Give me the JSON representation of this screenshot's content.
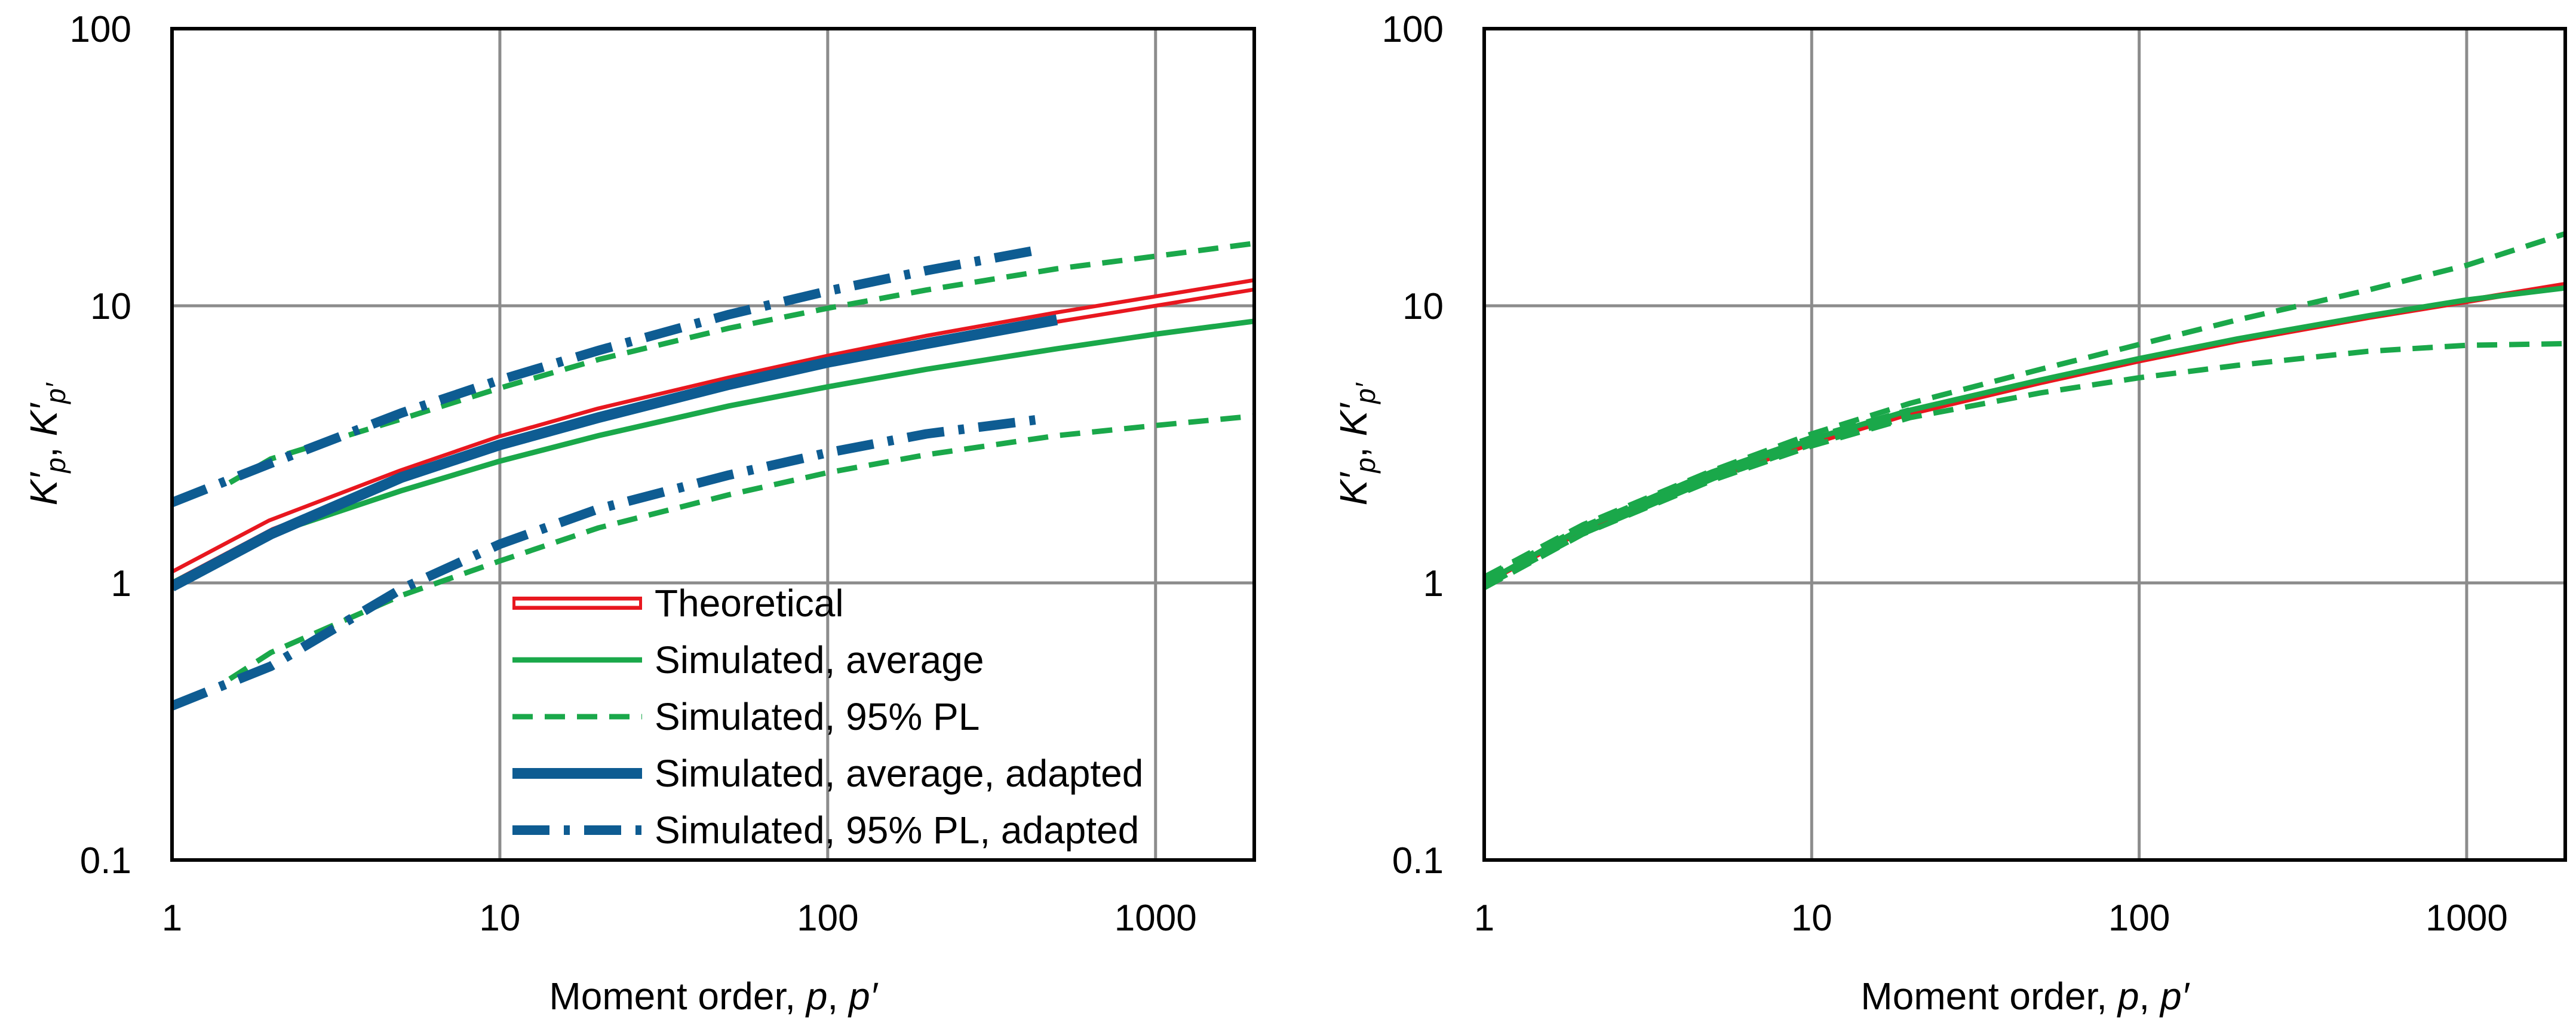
{
  "colors": {
    "theoretical": "#e8171f",
    "simulated_green": "#1aa84a",
    "adapted_blue": "#0e5c92",
    "grid": "#8c8c8c",
    "frame": "#000000"
  },
  "chart_data": [
    {
      "type": "line",
      "panel": "left",
      "xscale": "log",
      "yscale": "log",
      "xlim": [
        1,
        2000
      ],
      "ylim": [
        0.1,
        100
      ],
      "xticks": [
        "1",
        "10",
        "100",
        "1000"
      ],
      "yticks": [
        "0.1",
        "1",
        "10",
        "100"
      ],
      "xlabel": {
        "text": "Moment order, ",
        "p1": "p",
        "sep": ", ",
        "p2": "p′"
      },
      "ylabel": {
        "k": "K′",
        "sub1": "p",
        "sep": ", ",
        "k2": "K′",
        "sub2": "p′"
      },
      "grid": true,
      "legend_position": "bottom-center",
      "series": [
        {
          "name": "Theoretical",
          "style": "theoretical",
          "color": "#e8171f",
          "x": [
            1,
            2,
            5,
            10,
            20,
            50,
            100,
            200,
            500,
            1000,
            2000
          ],
          "y": [
            1.05,
            1.62,
            2.45,
            3.25,
            4.1,
            5.3,
            6.35,
            7.5,
            9.1,
            10.4,
            11.9
          ]
        },
        {
          "name": "Simulated, average",
          "style": "solid",
          "color": "#1aa84a",
          "x": [
            1,
            2,
            5,
            10,
            20,
            50,
            100,
            200,
            500,
            1000,
            2000
          ],
          "y": [
            1.0,
            1.5,
            2.15,
            2.75,
            3.4,
            4.35,
            5.1,
            5.9,
            7.0,
            7.9,
            8.8
          ]
        },
        {
          "name": "Simulated, 95% PL",
          "style": "dashed",
          "color": "#1aa84a",
          "x": [
            1.5,
            2,
            5,
            10,
            20,
            50,
            100,
            200,
            500,
            1000,
            2000
          ],
          "y": [
            2.3,
            2.8,
            3.9,
            5.05,
            6.4,
            8.3,
            9.8,
            11.4,
            13.6,
            15.1,
            16.8
          ]
        },
        {
          "name": "Simulated, 95% PL",
          "style": "dashed",
          "color": "#1aa84a",
          "legend": false,
          "x": [
            1.5,
            2,
            5,
            10,
            20,
            50,
            100,
            200,
            500,
            1000,
            2000
          ],
          "y": [
            0.45,
            0.56,
            0.9,
            1.2,
            1.58,
            2.08,
            2.5,
            2.9,
            3.4,
            3.7,
            4.0
          ]
        },
        {
          "name": "Simulated, average, adapted",
          "style": "thick",
          "color": "#0e5c92",
          "x": [
            1,
            2,
            5,
            10,
            20,
            50,
            100,
            200,
            500
          ],
          "y": [
            0.97,
            1.5,
            2.4,
            3.15,
            3.95,
            5.2,
            6.25,
            7.3,
            8.9
          ]
        },
        {
          "name": "Simulated, 95% PL, adapted",
          "style": "dashdot",
          "color": "#0e5c92",
          "x": [
            1,
            2,
            5,
            10,
            20,
            50,
            100,
            200,
            450
          ],
          "y": [
            1.95,
            2.7,
            4.1,
            5.4,
            6.9,
            9.3,
            11.3,
            13.4,
            16.0
          ]
        },
        {
          "name": "Simulated, 95% PL, adapted",
          "style": "dashdot",
          "color": "#0e5c92",
          "legend": false,
          "x": [
            1,
            2,
            5,
            10,
            20,
            50,
            100,
            200,
            450
          ],
          "y": [
            0.36,
            0.5,
            0.95,
            1.38,
            1.85,
            2.45,
            2.95,
            3.45,
            3.9
          ]
        }
      ],
      "legend": [
        {
          "label": "Theoretical",
          "style": "theoretical",
          "color": "#e8171f"
        },
        {
          "label": "Simulated, average",
          "style": "solid",
          "color": "#1aa84a"
        },
        {
          "label": "Simulated, 95% PL",
          "style": "dashed",
          "color": "#1aa84a"
        },
        {
          "label": "Simulated, average, adapted",
          "style": "thick",
          "color": "#0e5c92"
        },
        {
          "label": "Simulated, 95% PL, adapted",
          "style": "dashdot",
          "color": "#0e5c92"
        }
      ]
    },
    {
      "type": "line",
      "panel": "right",
      "xscale": "log",
      "yscale": "log",
      "xlim": [
        1,
        2000
      ],
      "ylim": [
        0.1,
        100
      ],
      "xticks": [
        "1",
        "10",
        "100",
        "1000"
      ],
      "yticks": [
        "0.1",
        "1",
        "10",
        "100"
      ],
      "xlabel": {
        "text": "Moment order, ",
        "p1": "p",
        "sep": ", ",
        "p2": "p′"
      },
      "ylabel": {
        "k": "K′",
        "sub1": "p",
        "sep": ", ",
        "k2": "K′",
        "sub2": "p′"
      },
      "grid": true,
      "series": [
        {
          "name": "Theoretical",
          "style": "redsolid",
          "color": "#e8171f",
          "x": [
            1,
            2,
            5,
            10,
            20,
            50,
            100,
            200,
            500,
            1000,
            2000
          ],
          "y": [
            1.0,
            1.55,
            2.4,
            3.2,
            4.1,
            5.3,
            6.35,
            7.5,
            9.1,
            10.4,
            11.9
          ]
        },
        {
          "name": "Simulated, average",
          "style": "solid",
          "color": "#1aa84a",
          "x": [
            1,
            2,
            5,
            10,
            20,
            50,
            100,
            200,
            500,
            1000,
            2000
          ],
          "y": [
            1.0,
            1.58,
            2.45,
            3.3,
            4.2,
            5.4,
            6.45,
            7.6,
            9.2,
            10.5,
            11.6
          ]
        },
        {
          "name": "Simulated, 95% PL",
          "style": "dashed",
          "color": "#1aa84a",
          "x": [
            1,
            2,
            5,
            10,
            20,
            50,
            100,
            200,
            500,
            1000,
            2000
          ],
          "y": [
            1.05,
            1.62,
            2.55,
            3.45,
            4.45,
            5.9,
            7.25,
            8.9,
            11.4,
            14.0,
            18.2
          ]
        },
        {
          "name": "Simulated, 95% PL",
          "style": "dashed",
          "color": "#1aa84a",
          "x": [
            1,
            2,
            5,
            10,
            20,
            50,
            100,
            200,
            500,
            1000,
            2000
          ],
          "y": [
            0.96,
            1.5,
            2.35,
            3.12,
            3.95,
            4.85,
            5.5,
            6.1,
            6.85,
            7.2,
            7.3
          ]
        },
        {
          "name": "Simulated, 95% PL, adapted",
          "style": "dashthick",
          "color": "#1aa84a",
          "x": [
            1,
            2,
            5,
            10,
            20
          ],
          "y": [
            1.0,
            1.55,
            2.45,
            3.25,
            4.1
          ]
        }
      ]
    }
  ]
}
